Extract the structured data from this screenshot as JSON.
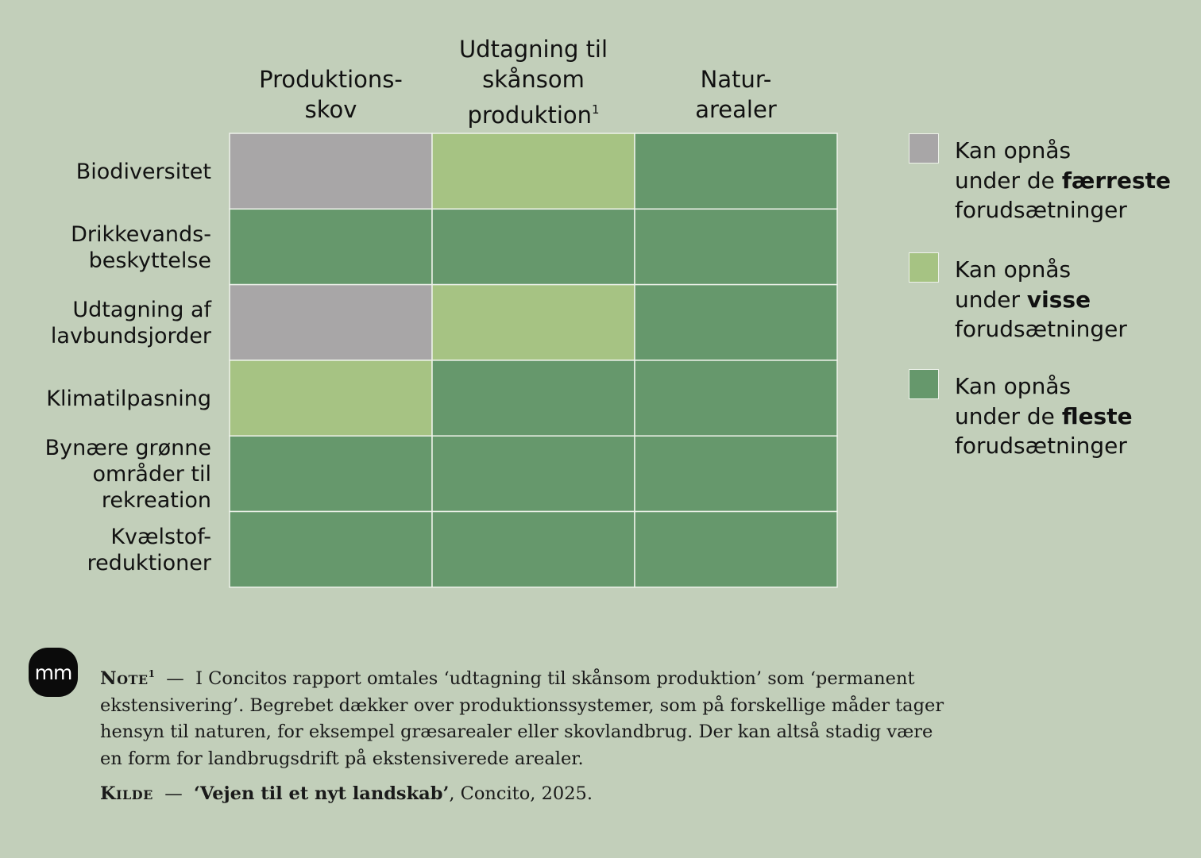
{
  "colors": {
    "background": "#c2cfba",
    "grey": "#a8a6a7",
    "light_green": "#a6c383",
    "dark_green": "#66986c",
    "grid_line": "#eef2ea"
  },
  "chart_data": {
    "type": "heatmap",
    "columns": [
      {
        "lines": [
          "Produktions-",
          "skov"
        ],
        "sup": ""
      },
      {
        "lines": [
          "Udtagning til",
          "skånsom",
          "produktion"
        ],
        "sup": "1"
      },
      {
        "lines": [
          "Natur-",
          "arealer"
        ],
        "sup": ""
      }
    ],
    "rows": [
      {
        "lines": [
          "Biodiversitet"
        ]
      },
      {
        "lines": [
          "Drikkevands-",
          "beskyttelse"
        ]
      },
      {
        "lines": [
          "Udtagning af",
          "lavbundsjorder"
        ]
      },
      {
        "lines": [
          "Klimatilpasning"
        ]
      },
      {
        "lines": [
          "Bynære grønne",
          "områder til",
          "rekreation"
        ]
      },
      {
        "lines": [
          "Kvælstof-",
          "reduktioner"
        ]
      }
    ],
    "levels": [
      "faerreste",
      "visse",
      "fleste"
    ],
    "values": [
      [
        "faerreste",
        "visse",
        "fleste"
      ],
      [
        "fleste",
        "fleste",
        "fleste"
      ],
      [
        "faerreste",
        "visse",
        "fleste"
      ],
      [
        "visse",
        "fleste",
        "fleste"
      ],
      [
        "fleste",
        "fleste",
        "fleste"
      ],
      [
        "fleste",
        "fleste",
        "fleste"
      ]
    ],
    "legend": [
      {
        "level": "faerreste",
        "color": "grey",
        "line1": "Kan opnås",
        "pre": "under de ",
        "bold": "færreste",
        "line3": "forudsætninger"
      },
      {
        "level": "visse",
        "color": "light_green",
        "line1": "Kan opnås",
        "pre": "under ",
        "bold": "visse",
        "line3": "forudsætninger"
      },
      {
        "level": "fleste",
        "color": "dark_green",
        "line1": "Kan opnås",
        "pre": "under de ",
        "bold": "fleste",
        "line3": "forudsætninger"
      }
    ],
    "legend_position": "right"
  },
  "logo": {
    "text": "mm"
  },
  "note": {
    "label": "Note",
    "sup": "1",
    "dash": "—",
    "lines": [
      "I Concitos rapport omtales ‘udtagning til skånsom produktion’ som ‘permanent",
      "ekstensivering’. Begrebet dækker over produktionssystemer, som på forskellige måder tager",
      "hensyn til naturen, for eksempel græsarealer eller skovlandbrug. Der kan altså stadig være",
      "en form for landbrugsdrift på ekstensiverede arealer."
    ]
  },
  "source": {
    "label": "Kilde",
    "dash": "—",
    "title": "‘Vejen til et nyt landskab’",
    "rest": ", Concito, 2025."
  }
}
